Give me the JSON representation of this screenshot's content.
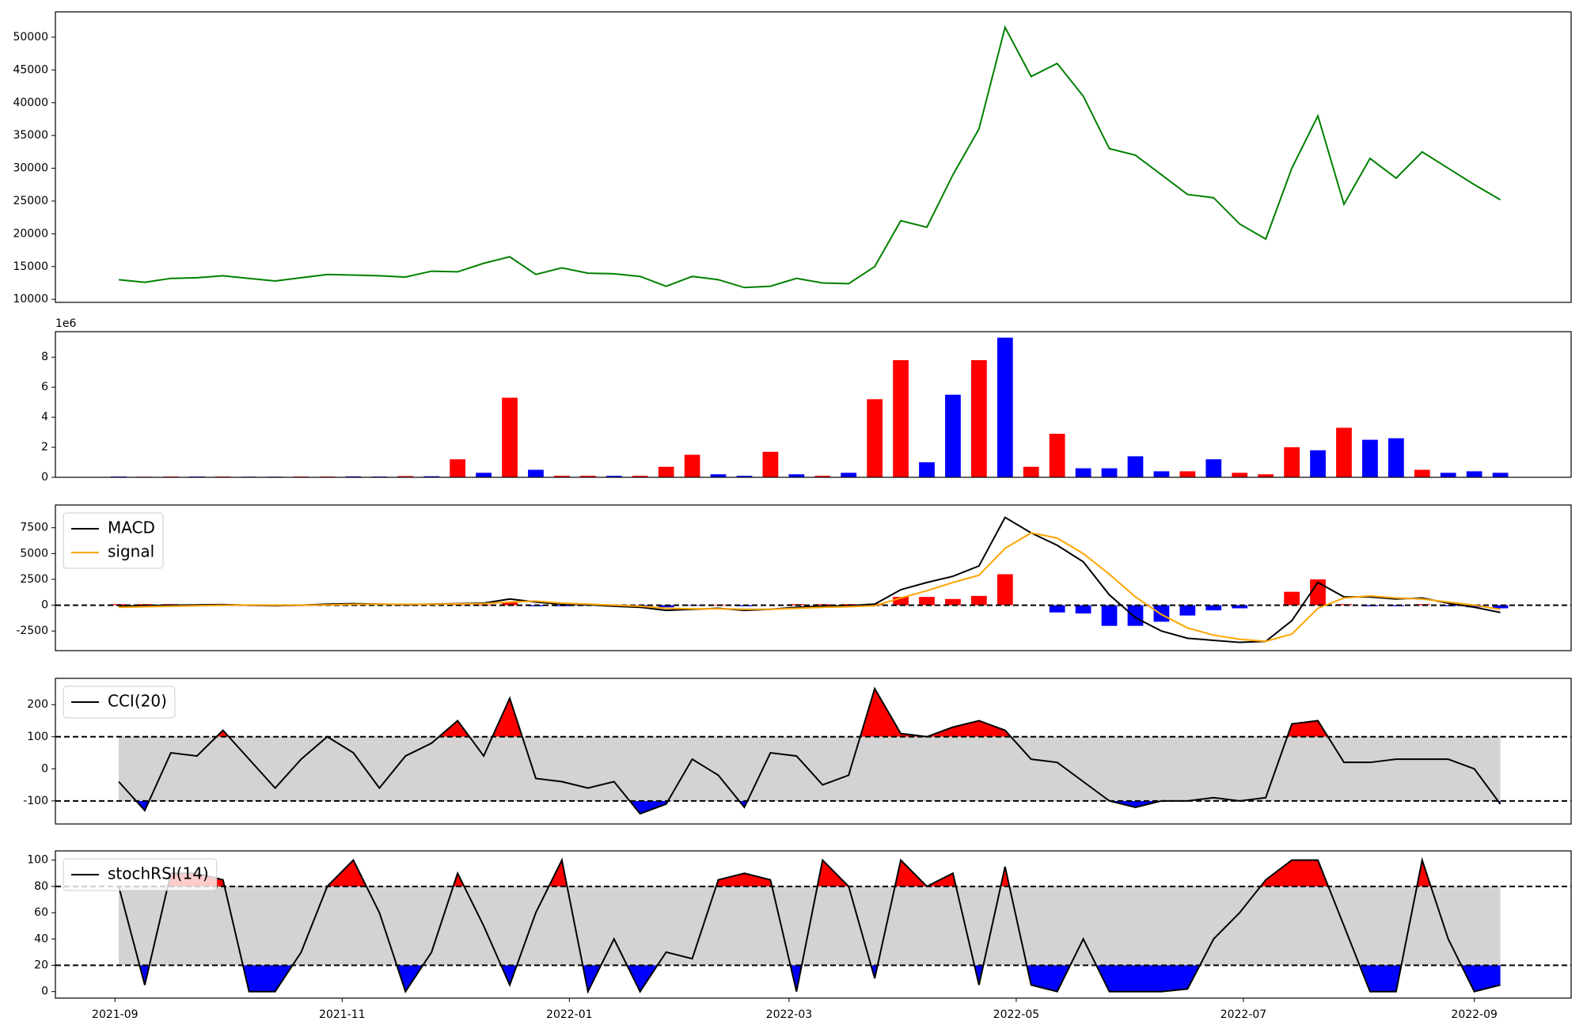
{
  "chart_data": [
    {
      "type": "line",
      "x": [
        "2021-09-02",
        "2021-09-09",
        "2021-09-16",
        "2021-09-23",
        "2021-09-30",
        "2021-10-07",
        "2021-10-14",
        "2021-10-21",
        "2021-10-28",
        "2021-11-04",
        "2021-11-11",
        "2021-11-18",
        "2021-11-25",
        "2021-12-02",
        "2021-12-09",
        "2021-12-16",
        "2021-12-23",
        "2021-12-30",
        "2022-01-06",
        "2022-01-13",
        "2022-01-20",
        "2022-01-27",
        "2022-02-03",
        "2022-02-10",
        "2022-02-17",
        "2022-02-24",
        "2022-03-03",
        "2022-03-10",
        "2022-03-17",
        "2022-03-24",
        "2022-03-31",
        "2022-04-07",
        "2022-04-14",
        "2022-04-21",
        "2022-04-28",
        "2022-05-05",
        "2022-05-12",
        "2022-05-19",
        "2022-05-26",
        "2022-06-02",
        "2022-06-09",
        "2022-06-16",
        "2022-06-23",
        "2022-06-30",
        "2022-07-07",
        "2022-07-14",
        "2022-07-21",
        "2022-07-28",
        "2022-08-04",
        "2022-08-11",
        "2022-08-18",
        "2022-08-25",
        "2022-09-01",
        "2022-09-08"
      ],
      "xlim": [
        "2021-08-16",
        "2022-09-27"
      ],
      "ylim": [
        9540,
        53860
      ],
      "yticks": [
        10000,
        15000,
        20000,
        25000,
        30000,
        35000,
        40000,
        45000,
        50000
      ],
      "series": [
        {
          "type": "line",
          "color": "#008000",
          "values": [
            13000,
            12600,
            13200,
            13300,
            13600,
            13200,
            12800,
            13300,
            13800,
            13700,
            13600,
            13400,
            14300,
            14200,
            15500,
            16500,
            13800,
            14800,
            14000,
            13900,
            13500,
            12000,
            13500,
            13000,
            11800,
            12000,
            13200,
            12500,
            12400,
            15000,
            22000,
            21000,
            29000,
            36000,
            51500,
            44000,
            46000,
            41000,
            33000,
            32000,
            29000,
            26000,
            25500,
            21500,
            19200,
            30000,
            38000,
            24500,
            31500,
            28500,
            32500,
            30000,
            27500,
            25200
          ]
        }
      ]
    },
    {
      "type": "bar",
      "x": [
        "2021-09-02",
        "2021-09-09",
        "2021-09-16",
        "2021-09-23",
        "2021-09-30",
        "2021-10-07",
        "2021-10-14",
        "2021-10-21",
        "2021-10-28",
        "2021-11-04",
        "2021-11-11",
        "2021-11-18",
        "2021-11-25",
        "2021-12-02",
        "2021-12-09",
        "2021-12-16",
        "2021-12-23",
        "2021-12-30",
        "2022-01-06",
        "2022-01-13",
        "2022-01-20",
        "2022-01-27",
        "2022-02-03",
        "2022-02-10",
        "2022-02-17",
        "2022-02-24",
        "2022-03-03",
        "2022-03-10",
        "2022-03-17",
        "2022-03-24",
        "2022-03-31",
        "2022-04-07",
        "2022-04-14",
        "2022-04-21",
        "2022-04-28",
        "2022-05-05",
        "2022-05-12",
        "2022-05-19",
        "2022-05-26",
        "2022-06-02",
        "2022-06-09",
        "2022-06-16",
        "2022-06-23",
        "2022-06-30",
        "2022-07-07",
        "2022-07-14",
        "2022-07-21",
        "2022-07-28",
        "2022-08-04",
        "2022-08-11",
        "2022-08-18",
        "2022-08-25",
        "2022-09-01",
        "2022-09-08"
      ],
      "xlim": [
        "2021-08-16",
        "2022-09-27"
      ],
      "offset_label": "1e6",
      "ylim": [
        0,
        9.7
      ],
      "yticks": [
        0,
        2,
        4,
        6,
        8
      ],
      "series": [
        {
          "type": "bar",
          "values": [
            0.05,
            0.04,
            0.05,
            0.05,
            0.05,
            0.04,
            0.04,
            0.05,
            0.05,
            0.06,
            0.05,
            0.08,
            0.07,
            1.2,
            0.3,
            5.3,
            0.5,
            0.1,
            0.1,
            0.1,
            0.1,
            0.7,
            1.5,
            0.2,
            0.1,
            1.7,
            0.2,
            0.1,
            0.3,
            5.2,
            7.8,
            1.0,
            5.5,
            7.8,
            9.3,
            0.7,
            2.9,
            0.6,
            0.6,
            1.4,
            0.4,
            0.4,
            1.2,
            0.3,
            0.2,
            2.0,
            1.8,
            3.3,
            2.5,
            2.6,
            0.5,
            0.3,
            0.4,
            0.3
          ],
          "colors": [
            "#0000ff",
            "#ff0000",
            "#ff0000",
            "#0000ff",
            "#ff0000",
            "#0000ff",
            "#0000ff",
            "#ff0000",
            "#ff0000",
            "#0000ff",
            "#0000ff",
            "#ff0000",
            "#0000ff",
            "#ff0000",
            "#0000ff",
            "#ff0000",
            "#0000ff",
            "#ff0000",
            "#ff0000",
            "#0000ff",
            "#ff0000",
            "#ff0000",
            "#ff0000",
            "#0000ff",
            "#0000ff",
            "#ff0000",
            "#0000ff",
            "#ff0000",
            "#0000ff",
            "#ff0000",
            "#ff0000",
            "#0000ff",
            "#0000ff",
            "#ff0000",
            "#0000ff",
            "#ff0000",
            "#ff0000",
            "#0000ff",
            "#0000ff",
            "#0000ff",
            "#0000ff",
            "#ff0000",
            "#0000ff",
            "#ff0000",
            "#ff0000",
            "#ff0000",
            "#0000ff",
            "#ff0000",
            "#0000ff",
            "#0000ff",
            "#ff0000",
            "#0000ff",
            "#0000ff",
            "#0000ff"
          ]
        }
      ]
    },
    {
      "type": "line",
      "x": [
        "2021-09-02",
        "2021-09-09",
        "2021-09-16",
        "2021-09-23",
        "2021-09-30",
        "2021-10-07",
        "2021-10-14",
        "2021-10-21",
        "2021-10-28",
        "2021-11-04",
        "2021-11-11",
        "2021-11-18",
        "2021-11-25",
        "2021-12-02",
        "2021-12-09",
        "2021-12-16",
        "2021-12-23",
        "2021-12-30",
        "2022-01-06",
        "2022-01-13",
        "2022-01-20",
        "2022-01-27",
        "2022-02-03",
        "2022-02-10",
        "2022-02-17",
        "2022-02-24",
        "2022-03-03",
        "2022-03-10",
        "2022-03-17",
        "2022-03-24",
        "2022-03-31",
        "2022-04-07",
        "2022-04-14",
        "2022-04-21",
        "2022-04-28",
        "2022-05-05",
        "2022-05-12",
        "2022-05-19",
        "2022-05-26",
        "2022-06-02",
        "2022-06-09",
        "2022-06-16",
        "2022-06-23",
        "2022-06-30",
        "2022-07-07",
        "2022-07-14",
        "2022-07-21",
        "2022-07-28",
        "2022-08-04",
        "2022-08-11",
        "2022-08-18",
        "2022-08-25",
        "2022-09-01",
        "2022-09-08"
      ],
      "xlim": [
        "2021-08-16",
        "2022-09-27"
      ],
      "ylim": [
        -4400,
        9700
      ],
      "yticks": [
        -2500,
        0,
        2500,
        5000,
        7500
      ],
      "hlines": [
        0
      ],
      "legend": "upper left",
      "series": [
        {
          "type": "bar",
          "color": "#ff0000",
          "negative_color": "#0000ff",
          "values": [
            100,
            100,
            100,
            80,
            50,
            -20,
            -50,
            0,
            70,
            70,
            0,
            -30,
            10,
            30,
            50,
            300,
            -100,
            -100,
            -50,
            -100,
            -100,
            -200,
            -50,
            50,
            -100,
            0,
            100,
            100,
            100,
            150,
            800,
            800,
            600,
            900,
            3000,
            0,
            -700,
            -800,
            -2000,
            -2000,
            -1600,
            -1000,
            -500,
            -300,
            0,
            1300,
            2500,
            100,
            -100,
            -100,
            100,
            -100,
            -200,
            -300
          ]
        },
        {
          "type": "line",
          "name": "MACD",
          "color": "#000000",
          "values": [
            -100,
            -50,
            0,
            30,
            50,
            0,
            -50,
            0,
            100,
            150,
            100,
            50,
            100,
            150,
            200,
            600,
            300,
            100,
            50,
            -100,
            -200,
            -500,
            -400,
            -300,
            -500,
            -400,
            -200,
            -100,
            -50,
            100,
            1500,
            2200,
            2800,
            3800,
            8500,
            7000,
            5800,
            4200,
            1000,
            -1200,
            -2500,
            -3200,
            -3400,
            -3600,
            -3500,
            -1500,
            2200,
            800,
            800,
            600,
            700,
            200,
            -200,
            -700
          ]
        },
        {
          "type": "line",
          "name": "signal",
          "color": "#ffa500",
          "values": [
            -200,
            -150,
            -100,
            -50,
            0,
            20,
            0,
            0,
            30,
            80,
            100,
            80,
            90,
            120,
            150,
            300,
            400,
            200,
            100,
            0,
            -100,
            -300,
            -350,
            -350,
            -400,
            -400,
            -300,
            -200,
            -150,
            -50,
            700,
            1400,
            2200,
            2900,
            5500,
            7000,
            6500,
            5000,
            3000,
            800,
            -900,
            -2200,
            -2900,
            -3300,
            -3500,
            -2800,
            -300,
            700,
            900,
            700,
            600,
            300,
            0,
            -400
          ]
        }
      ]
    },
    {
      "type": "oscillator",
      "x": [
        "2021-09-02",
        "2021-09-09",
        "2021-09-16",
        "2021-09-23",
        "2021-09-30",
        "2021-10-07",
        "2021-10-14",
        "2021-10-21",
        "2021-10-28",
        "2021-11-04",
        "2021-11-11",
        "2021-11-18",
        "2021-11-25",
        "2021-12-02",
        "2021-12-09",
        "2021-12-16",
        "2021-12-23",
        "2021-12-30",
        "2022-01-06",
        "2022-01-13",
        "2022-01-20",
        "2022-01-27",
        "2022-02-03",
        "2022-02-10",
        "2022-02-17",
        "2022-02-24",
        "2022-03-03",
        "2022-03-10",
        "2022-03-17",
        "2022-03-24",
        "2022-03-31",
        "2022-04-07",
        "2022-04-14",
        "2022-04-21",
        "2022-04-28",
        "2022-05-05",
        "2022-05-12",
        "2022-05-19",
        "2022-05-26",
        "2022-06-02",
        "2022-06-09",
        "2022-06-16",
        "2022-06-23",
        "2022-06-30",
        "2022-07-07",
        "2022-07-14",
        "2022-07-21",
        "2022-07-28",
        "2022-08-04",
        "2022-08-11",
        "2022-08-18",
        "2022-08-25",
        "2022-09-01",
        "2022-09-08"
      ],
      "xlim": [
        "2021-08-16",
        "2022-09-27"
      ],
      "ylim": [
        -172,
        282
      ],
      "yticks": [
        -100,
        0,
        100,
        200
      ],
      "bands": {
        "upper": 100,
        "lower": -100,
        "upper_color": "#ff0000",
        "lower_color": "#0000ff",
        "band_color": "#d3d3d3"
      },
      "legend": "upper left",
      "series": [
        {
          "type": "line",
          "name": "CCI(20)",
          "color": "#000000",
          "values": [
            -40,
            -130,
            50,
            40,
            120,
            30,
            -60,
            30,
            100,
            50,
            -60,
            40,
            80,
            150,
            40,
            220,
            -30,
            -40,
            -60,
            -40,
            -140,
            -110,
            30,
            -20,
            -120,
            50,
            40,
            -50,
            -20,
            250,
            110,
            100,
            130,
            150,
            120,
            30,
            20,
            -40,
            -100,
            -120,
            -100,
            -100,
            -90,
            -100,
            -90,
            140,
            150,
            20,
            20,
            30,
            30,
            30,
            0,
            -110
          ]
        }
      ]
    },
    {
      "type": "oscillator",
      "x": [
        "2021-09-02",
        "2021-09-09",
        "2021-09-16",
        "2021-09-23",
        "2021-09-30",
        "2021-10-07",
        "2021-10-14",
        "2021-10-21",
        "2021-10-28",
        "2021-11-04",
        "2021-11-11",
        "2021-11-18",
        "2021-11-25",
        "2021-12-02",
        "2021-12-09",
        "2021-12-16",
        "2021-12-23",
        "2021-12-30",
        "2022-01-06",
        "2022-01-13",
        "2022-01-20",
        "2022-01-27",
        "2022-02-03",
        "2022-02-10",
        "2022-02-17",
        "2022-02-24",
        "2022-03-03",
        "2022-03-10",
        "2022-03-17",
        "2022-03-24",
        "2022-03-31",
        "2022-04-07",
        "2022-04-14",
        "2022-04-21",
        "2022-04-28",
        "2022-05-05",
        "2022-05-12",
        "2022-05-19",
        "2022-05-26",
        "2022-06-02",
        "2022-06-09",
        "2022-06-16",
        "2022-06-23",
        "2022-06-30",
        "2022-07-07",
        "2022-07-14",
        "2022-07-21",
        "2022-07-28",
        "2022-08-04",
        "2022-08-11",
        "2022-08-18",
        "2022-08-25",
        "2022-09-01",
        "2022-09-08"
      ],
      "xlim": [
        "2021-08-16",
        "2022-09-27"
      ],
      "xticks": [
        {
          "value": "2021-09-01",
          "label": "2021-09"
        },
        {
          "value": "2021-11-01",
          "label": "2021-11"
        },
        {
          "value": "2022-01-01",
          "label": "2022-01"
        },
        {
          "value": "2022-03-01",
          "label": "2022-03"
        },
        {
          "value": "2022-05-01",
          "label": "2022-05"
        },
        {
          "value": "2022-07-01",
          "label": "2022-07"
        },
        {
          "value": "2022-09-01",
          "label": "2022-09"
        }
      ],
      "ylim": [
        -5,
        107
      ],
      "yticks": [
        0,
        20,
        40,
        60,
        80,
        100
      ],
      "bands": {
        "upper": 80,
        "lower": 20,
        "upper_color": "#ff0000",
        "lower_color": "#0000ff",
        "band_color": "#d3d3d3"
      },
      "legend": "upper left",
      "series": [
        {
          "type": "line",
          "name": "stochRSI(14)",
          "color": "#000000",
          "values": [
            80,
            5,
            90,
            90,
            85,
            0,
            0,
            30,
            80,
            100,
            60,
            0,
            30,
            90,
            50,
            5,
            60,
            100,
            0,
            40,
            0,
            30,
            25,
            85,
            90,
            85,
            0,
            100,
            80,
            10,
            100,
            80,
            90,
            5,
            95,
            5,
            0,
            40,
            0,
            0,
            0,
            2,
            40,
            60,
            85,
            100,
            100,
            50,
            0,
            0,
            100,
            40,
            0,
            5
          ]
        }
      ]
    }
  ]
}
